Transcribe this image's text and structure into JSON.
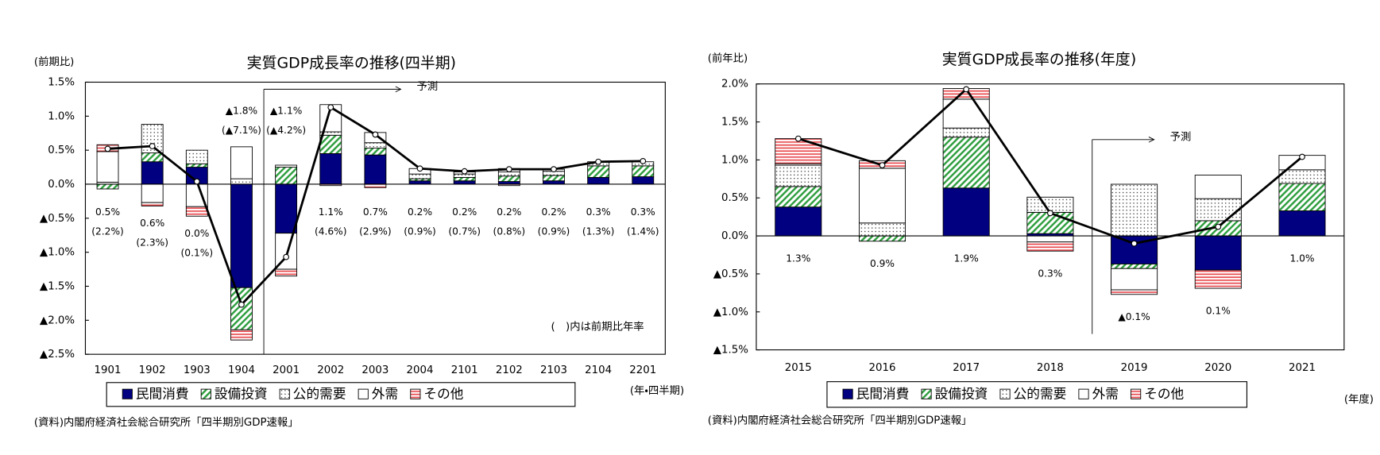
{
  "chart_data": [
    {
      "type": "bar",
      "stacked": true,
      "title": "実質GDP成長率の推移(四半期)",
      "y_unit_label": "(前期比)",
      "x_unit_label": "(年・四半期)",
      "source": "(資料)内閣府経済社会総合研究所「四半期別GDP速報」",
      "note": "(　)内は前期比年率",
      "forecast": {
        "label": "予測",
        "from": "2001"
      },
      "categories": [
        "1901",
        "1902",
        "1903",
        "1904",
        "2001",
        "2002",
        "2003",
        "2004",
        "2101",
        "2102",
        "2103",
        "2104",
        "2201"
      ],
      "ylim": [
        -2.5,
        1.5
      ],
      "yticks": [
        {
          "value": -2.5,
          "label": "▲2.5%"
        },
        {
          "value": -2.0,
          "label": "▲2.0%"
        },
        {
          "value": -1.5,
          "label": "▲1.5%"
        },
        {
          "value": -1.0,
          "label": "▲1.0%"
        },
        {
          "value": -0.5,
          "label": "▲0.5%"
        },
        {
          "value": 0,
          "label": "0.0%"
        },
        {
          "value": 0.5,
          "label": "0.5%"
        },
        {
          "value": 1.0,
          "label": "1.0%"
        },
        {
          "value": 1.5,
          "label": "1.5%"
        }
      ],
      "series": [
        {
          "name": "民間消費",
          "color": "#000080",
          "pattern": "solid",
          "values": [
            0.0,
            0.33,
            0.25,
            -1.52,
            -0.72,
            0.45,
            0.43,
            0.05,
            0.05,
            0.04,
            0.05,
            0.1,
            0.11
          ]
        },
        {
          "name": "設備投資",
          "color": "#2e9e3e",
          "pattern": "hatch",
          "values": [
            -0.07,
            0.13,
            0.05,
            -0.62,
            0.25,
            0.27,
            0.1,
            0.03,
            0.05,
            0.08,
            0.08,
            0.17,
            0.16
          ]
        },
        {
          "name": "公的需要",
          "color": "#000000",
          "pattern": "dots",
          "values": [
            0.03,
            0.42,
            0.2,
            0.08,
            0.03,
            0.05,
            0.08,
            0.07,
            0.05,
            0.06,
            0.06,
            0.06,
            0.06
          ]
        },
        {
          "name": "外需",
          "color": "#ffffff",
          "pattern": "solid",
          "values": [
            0.45,
            -0.27,
            -0.33,
            0.47,
            -0.53,
            0.4,
            0.15,
            0.08,
            0.03,
            0.05,
            0.03,
            0.0,
            0.0
          ]
        },
        {
          "name": "その他",
          "color": "#e8474c",
          "pattern": "stripes",
          "values": [
            0.1,
            -0.05,
            -0.14,
            -0.15,
            -0.1,
            -0.02,
            -0.05,
            0.0,
            0.01,
            -0.02,
            0.0,
            0.0,
            0.0
          ]
        }
      ],
      "line": {
        "color": "#000000",
        "values": [
          0.52,
          0.56,
          0.04,
          -1.77,
          -1.07,
          1.13,
          0.73,
          0.23,
          0.19,
          0.22,
          0.22,
          0.33,
          0.34
        ],
        "value_labels": [
          "0.5%",
          "0.6%",
          "0.0%",
          "▲1.8%",
          "▲1.1%",
          "1.1%",
          "0.7%",
          "0.2%",
          "0.2%",
          "0.2%",
          "0.2%",
          "0.3%",
          "0.3%"
        ]
      },
      "annualized": {
        "values": [
          2.2,
          2.3,
          0.1,
          -7.1,
          -4.2,
          4.6,
          2.9,
          0.9,
          0.7,
          0.8,
          0.9,
          1.3,
          1.4
        ],
        "value_labels": [
          "(2.2%)",
          "(2.3%)",
          "(0.1%)",
          "(▲7.1%)",
          "(▲4.2%)",
          "(4.6%)",
          "(2.9%)",
          "(0.9%)",
          "(0.7%)",
          "(0.8%)",
          "(0.9%)",
          "(1.3%)",
          "(1.4%)"
        ]
      }
    },
    {
      "type": "bar",
      "stacked": true,
      "title": "実質GDP成長率の推移(年度)",
      "y_unit_label": "(前年比)",
      "x_unit_label": "(年度)",
      "source": "(資料)内閣府経済社会総合研究所「四半期別GDP速報」",
      "forecast": {
        "label": "予測",
        "from": "2019"
      },
      "categories": [
        "2015",
        "2016",
        "2017",
        "2018",
        "2019",
        "2020",
        "2021"
      ],
      "ylim": [
        -1.5,
        2.0
      ],
      "yticks": [
        {
          "value": -1.5,
          "label": "▲1.5%"
        },
        {
          "value": -1.0,
          "label": "▲1.0%"
        },
        {
          "value": -0.5,
          "label": "▲0.5%"
        },
        {
          "value": 0,
          "label": "0.0%"
        },
        {
          "value": 0.5,
          "label": "0.5%"
        },
        {
          "value": 1.0,
          "label": "1.0%"
        },
        {
          "value": 1.5,
          "label": "1.5%"
        },
        {
          "value": 2.0,
          "label": "2.0%"
        }
      ],
      "series": [
        {
          "name": "民間消費",
          "color": "#000080",
          "pattern": "solid",
          "values": [
            0.38,
            0.0,
            0.63,
            0.03,
            -0.37,
            -0.45,
            0.33
          ]
        },
        {
          "name": "設備投資",
          "color": "#2e9e3e",
          "pattern": "hatch",
          "values": [
            0.27,
            -0.07,
            0.67,
            0.28,
            -0.06,
            0.2,
            0.36
          ]
        },
        {
          "name": "公的需要",
          "color": "#000000",
          "pattern": "dots",
          "values": [
            0.28,
            0.17,
            0.12,
            0.2,
            0.68,
            0.29,
            0.18
          ]
        },
        {
          "name": "外需",
          "color": "#ffffff",
          "pattern": "solid",
          "values": [
            0.02,
            0.72,
            0.38,
            -0.08,
            -0.28,
            0.31,
            0.19
          ]
        },
        {
          "name": "その他",
          "color": "#e8474c",
          "pattern": "stripes",
          "values": [
            0.33,
            0.1,
            0.14,
            -0.12,
            -0.06,
            -0.24,
            0.0
          ]
        }
      ],
      "line": {
        "color": "#000000",
        "values": [
          1.28,
          0.93,
          1.93,
          0.3,
          -0.1,
          0.12,
          1.04
        ],
        "value_labels": [
          "1.3%",
          "0.9%",
          "1.9%",
          "0.3%",
          "▲0.1%",
          "0.1%",
          "1.0%"
        ]
      }
    }
  ]
}
